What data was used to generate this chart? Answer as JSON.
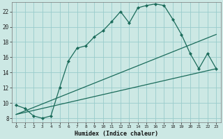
{
  "xlabel": "Humidex (Indice chaleur)",
  "bg_color": "#cce8e4",
  "grid_color": "#99cccc",
  "line_color": "#1a6b5a",
  "xlim": [
    -0.5,
    23.5
  ],
  "ylim": [
    7.5,
    23.2
  ],
  "yticks": [
    8,
    10,
    12,
    14,
    16,
    18,
    20,
    22
  ],
  "xticks": [
    0,
    1,
    2,
    3,
    4,
    5,
    6,
    7,
    8,
    9,
    10,
    11,
    12,
    13,
    14,
    15,
    16,
    17,
    18,
    19,
    20,
    21,
    22,
    23
  ],
  "curve1_x": [
    0,
    1,
    2,
    3,
    4,
    5,
    6,
    7,
    8,
    9,
    10,
    11,
    12,
    13,
    14,
    15,
    16,
    17,
    18,
    19,
    20,
    21,
    22,
    23
  ],
  "curve1_y": [
    9.7,
    9.3,
    8.3,
    8.0,
    8.3,
    12.0,
    15.5,
    17.2,
    17.5,
    18.7,
    19.5,
    20.7,
    22.0,
    20.5,
    22.5,
    22.8,
    23.0,
    22.8,
    21.0,
    19.0,
    16.5,
    14.5,
    16.5,
    14.5
  ],
  "curve2_x": [
    0,
    23
  ],
  "curve2_y": [
    8.5,
    14.5
  ],
  "curve3_x": [
    0,
    23
  ],
  "curve3_y": [
    8.5,
    19.0
  ]
}
